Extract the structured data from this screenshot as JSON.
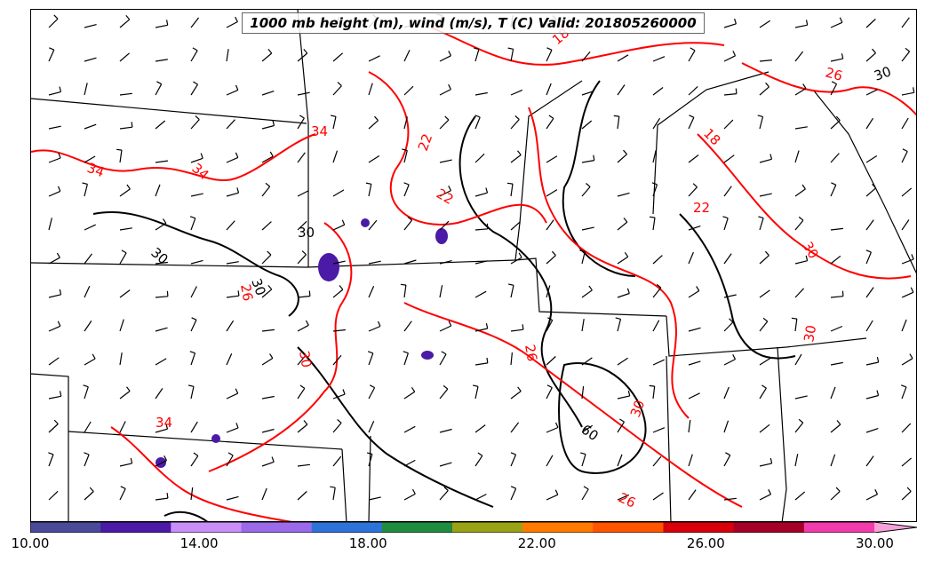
{
  "title": "1000 mb height (m), wind (m/s), T (C) Valid: 201805260000",
  "colorbar": {
    "colors": [
      "#4a4a9a",
      "#4b1aa6",
      "#c98ff7",
      "#9a6ae8",
      "#2e73d9",
      "#1f8c3f",
      "#9aa215",
      "#ff7a00",
      "#ff5500",
      "#d8000a",
      "#a40028",
      "#f23cab",
      "#f7a1d9"
    ],
    "tick_labels": [
      "10.00",
      "14.00",
      "18.00",
      "22.00",
      "26.00",
      "30.00"
    ],
    "range": [
      10,
      31
    ]
  },
  "contour_labels": {
    "temperature": [
      "34",
      "34",
      "34",
      "34",
      "22",
      "22",
      "26",
      "30",
      "30",
      "30",
      "26",
      "30",
      "26",
      "22",
      "18",
      "18",
      "26"
    ],
    "height": [
      "30",
      "30",
      "60",
      "30",
      "30"
    ]
  },
  "colors": {
    "temperature_contour": "#ff0000",
    "height_contour": "#000000",
    "state_border": "#000000"
  }
}
